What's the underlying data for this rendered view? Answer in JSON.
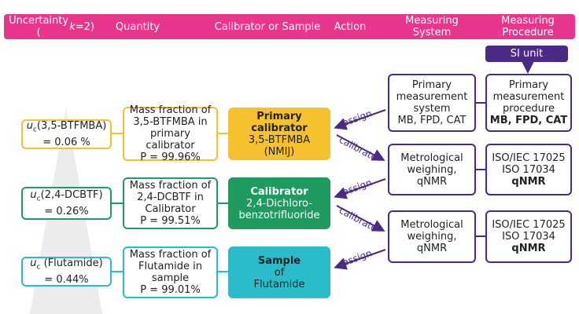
{
  "header": {
    "uncertainty_prefix": "Uncertainty (",
    "k": "k",
    "uncertainty_suffix": "=2)",
    "quantity": "Quantity",
    "calibrator": "Calibrator or Sample",
    "action": "Action",
    "system": "Measuring System",
    "procedure": "Measuring Procedure"
  },
  "si_unit": "SI unit",
  "rows": [
    {
      "u_symbol": "u",
      "u_sub": "c",
      "u_name": "(3,5-BTFMBA)",
      "u_value": "= 0.06 %",
      "q": [
        "Mass fraction of",
        "3,5-BTFMBA in",
        "primary calibrator",
        "P = 99.96%"
      ],
      "cal_title": "Primary calibrator",
      "cal_lines": [
        "3,5-BTFMBA",
        "(NMIJ)"
      ],
      "sys": [
        "Primary",
        "measurement",
        "system",
        "MB, FPD, CAT"
      ],
      "proc": [
        "Primary",
        "measurement",
        "procedure"
      ],
      "proc_bold": "MB, FPD, CAT"
    },
    {
      "u_symbol": "u",
      "u_sub": "c",
      "u_name": "(2,4-DCBTF)",
      "u_value": "= 0.26%",
      "q": [
        "Mass fraction of",
        "2,4-DCBTF in",
        "Calibrator",
        "P = 99.51%"
      ],
      "cal_title": "Calibrator",
      "cal_lines": [
        "2,4-Dichloro-",
        "benzotrifluoride"
      ],
      "sys": [
        "Metrological",
        "weighing,",
        "qNMR"
      ],
      "proc": [
        "ISO/IEC 17025",
        "ISO 17034"
      ],
      "proc_bold": "qNMR"
    },
    {
      "u_symbol": "u",
      "u_sub": "c",
      "u_name": " (Flutamide)",
      "u_value": "= 0.44%",
      "q": [
        "Mass fraction of",
        "Flutamide in",
        "sample",
        "P = 99.01%"
      ],
      "cal_title": "Sample",
      "cal_lines": [
        "of",
        "Flutamide"
      ],
      "sys": [
        "Metrological",
        "weighing,",
        "qNMR"
      ],
      "proc": [
        "ISO/IEC 17025",
        "ISO 17034"
      ],
      "proc_bold": "qNMR"
    }
  ],
  "actions": {
    "assign": "assign",
    "calibrate": "calibrate"
  },
  "colors": {
    "header": "#e8368f",
    "primary": "#f6c12e",
    "calibrator": "#1f9b60",
    "sample": "#2bbccb",
    "purple": "#4b2a86"
  }
}
